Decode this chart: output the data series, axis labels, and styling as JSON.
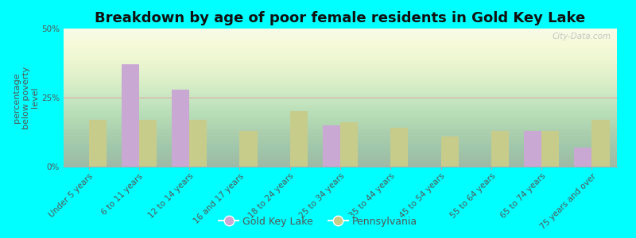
{
  "title": "Breakdown by age of poor female residents in Gold Key Lake",
  "ylabel": "percentage\nbelow poverty\nlevel",
  "categories": [
    "Under 5 years",
    "6 to 11 years",
    "12 to 14 years",
    "16 and 17 years",
    "18 to 24 years",
    "25 to 34 years",
    "35 to 44 years",
    "45 to 54 years",
    "55 to 64 years",
    "65 to 74 years",
    "75 years and over"
  ],
  "gold_key_lake": [
    0,
    37,
    28,
    0,
    0,
    15,
    0,
    0,
    0,
    13,
    7
  ],
  "pennsylvania": [
    17,
    17,
    17,
    13,
    20,
    16,
    14,
    11,
    13,
    13,
    17
  ],
  "gkl_color": "#c9a8d4",
  "pa_color": "#c8cc8a",
  "background_color": "#00ffff",
  "ylim": [
    0,
    50
  ],
  "yticks": [
    0,
    25,
    50
  ],
  "ytick_labels": [
    "0%",
    "25%",
    "50%"
  ],
  "bar_width": 0.35,
  "title_fontsize": 13,
  "label_fontsize": 8,
  "tick_fontsize": 7.5,
  "legend_labels": [
    "Gold Key Lake",
    "Pennsylvania"
  ],
  "watermark": "City-Data.com"
}
